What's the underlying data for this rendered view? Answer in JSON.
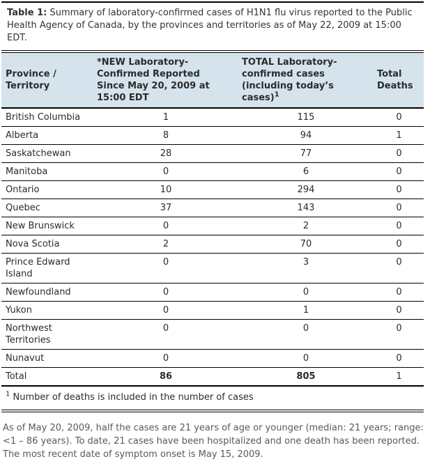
{
  "caption": {
    "label": "Table 1:",
    "text": " Summary of laboratory-confirmed cases of H1N1 flu virus reported to the Public Health Agency of Canada, by the provinces and territories as of May 22, 2009 at 15:00 EDT."
  },
  "table": {
    "columns": [
      {
        "label": "Province / Territory"
      },
      {
        "label": "*NEW Laboratory-Confirmed Reported Since May 20, 2009 at 15:00 EDT"
      },
      {
        "label": "TOTAL Laboratory-confirmed cases (including today’s cases)",
        "superscript": "1"
      },
      {
        "label": "Total Deaths"
      }
    ],
    "rows": [
      {
        "province": "British Columbia",
        "new_cases": "1",
        "total_cases": "115",
        "deaths": "0"
      },
      {
        "province": "Alberta",
        "new_cases": "8",
        "total_cases": "94",
        "deaths": "1"
      },
      {
        "province": "Saskatchewan",
        "new_cases": "28",
        "total_cases": "77",
        "deaths": "0"
      },
      {
        "province": "Manitoba",
        "new_cases": "0",
        "total_cases": "6",
        "deaths": "0"
      },
      {
        "province": "Ontario",
        "new_cases": "10",
        "total_cases": "294",
        "deaths": "0"
      },
      {
        "province": "Quebec",
        "new_cases": "37",
        "total_cases": "143",
        "deaths": "0"
      },
      {
        "province": "New Brunswick",
        "new_cases": "0",
        "total_cases": "2",
        "deaths": "0"
      },
      {
        "province": "Nova Scotia",
        "new_cases": "2",
        "total_cases": "70",
        "deaths": "0"
      },
      {
        "province": "Prince Edward Island",
        "new_cases": "0",
        "total_cases": "3",
        "deaths": "0"
      },
      {
        "province": "Newfoundland",
        "new_cases": "0",
        "total_cases": "0",
        "deaths": "0"
      },
      {
        "province": "Yukon",
        "new_cases": "0",
        "total_cases": "1",
        "deaths": "0"
      },
      {
        "province": "Northwest Territories",
        "new_cases": "0",
        "total_cases": "0",
        "deaths": "0"
      },
      {
        "province": "Nunavut",
        "new_cases": "0",
        "total_cases": "0",
        "deaths": "0"
      }
    ],
    "total_row": {
      "label": "Total",
      "new_cases": "86",
      "total_cases": "805",
      "deaths": "1"
    },
    "footnote": {
      "marker": "1",
      "text": "Number of deaths is included in the number of cases"
    }
  },
  "summary_paragraph": "As of May 20, 2009, half the cases are 21 years of age or younger (median: 21 years; range: <1 – 86 years). To date, 21 cases have been hospitalized and one death has been reported.  The most recent date of symptom onset is May 15, 2009.",
  "colors": {
    "header_bg": "#d5e3ec",
    "border": "#000000",
    "table_text": "#2b2b2b",
    "paragraph_text": "#595959"
  }
}
